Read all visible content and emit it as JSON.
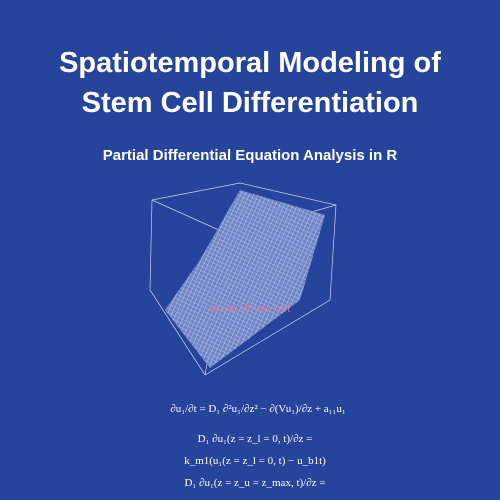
{
  "header": {
    "title": [
      "Spatiotemporal Modeling of",
      "Stem Cell Differentiation"
    ],
    "subtitle": "Partial Differential Equation Analysis in R"
  },
  "watermark": "www.1lihao.net",
  "equations": [
    "∂u₁/∂t = D₁ ∂²u₁/∂z² − ∂(Vu₁)/∂z + a₁₁u₁",
    "D₁ ∂u₁(z = z_l = 0, t)/∂z =",
    "k_m1(u₁(z = z_l = 0, t) − u_b1t)",
    "D₁ ∂u₁(z = z_u = z_max, t)/∂z ="
  ]
}
